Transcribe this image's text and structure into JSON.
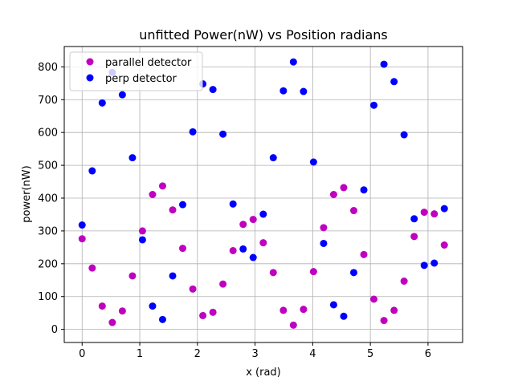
{
  "chart_data": {
    "type": "scatter",
    "title": "unfitted Power(nW) vs Position radians",
    "xlabel": "x (rad)",
    "ylabel": "power(nW)",
    "xlim": [
      -0.31,
      6.6
    ],
    "ylim": [
      -40,
      862
    ],
    "xticks": [
      0,
      1,
      2,
      3,
      4,
      5,
      6
    ],
    "yticks": [
      0,
      100,
      200,
      300,
      400,
      500,
      600,
      700,
      800
    ],
    "grid": true,
    "legend_position": "top-left",
    "series": [
      {
        "name": "parallel detector",
        "color": "#bf00bf",
        "x": [
          0.0,
          0.175,
          0.349,
          0.524,
          0.698,
          0.873,
          1.047,
          1.222,
          1.396,
          1.571,
          1.745,
          1.92,
          2.094,
          2.269,
          2.443,
          2.618,
          2.793,
          2.967,
          3.142,
          3.316,
          3.491,
          3.665,
          3.84,
          4.014,
          4.189,
          4.363,
          4.538,
          4.712,
          4.887,
          5.061,
          5.236,
          5.411,
          5.585,
          5.76,
          5.934,
          6.109,
          6.283
        ],
        "y": [
          276,
          187,
          71,
          21,
          56,
          163,
          300,
          411,
          437,
          364,
          247,
          123,
          42,
          52,
          138,
          240,
          320,
          335,
          264,
          173,
          58,
          13,
          61,
          176,
          310,
          411,
          432,
          362,
          228,
          92,
          27,
          58,
          147,
          283,
          357,
          352,
          257
        ]
      },
      {
        "name": "perp detector",
        "color": "#0000ff",
        "x": [
          0.0,
          0.175,
          0.349,
          0.524,
          0.698,
          0.873,
          1.047,
          1.222,
          1.396,
          1.571,
          1.745,
          1.92,
          2.094,
          2.269,
          2.443,
          2.618,
          2.793,
          2.967,
          3.142,
          3.316,
          3.491,
          3.665,
          3.84,
          4.014,
          4.189,
          4.363,
          4.538,
          4.712,
          4.887,
          5.061,
          5.236,
          5.411,
          5.585,
          5.76,
          5.934,
          6.109,
          6.283
        ],
        "y": [
          318,
          483,
          690,
          783,
          715,
          523,
          273,
          71,
          30,
          163,
          380,
          602,
          748,
          731,
          595,
          382,
          245,
          219,
          351,
          523,
          727,
          815,
          725,
          510,
          262,
          75,
          40,
          173,
          425,
          683,
          808,
          755,
          593,
          337,
          195,
          202,
          368
        ]
      }
    ]
  }
}
